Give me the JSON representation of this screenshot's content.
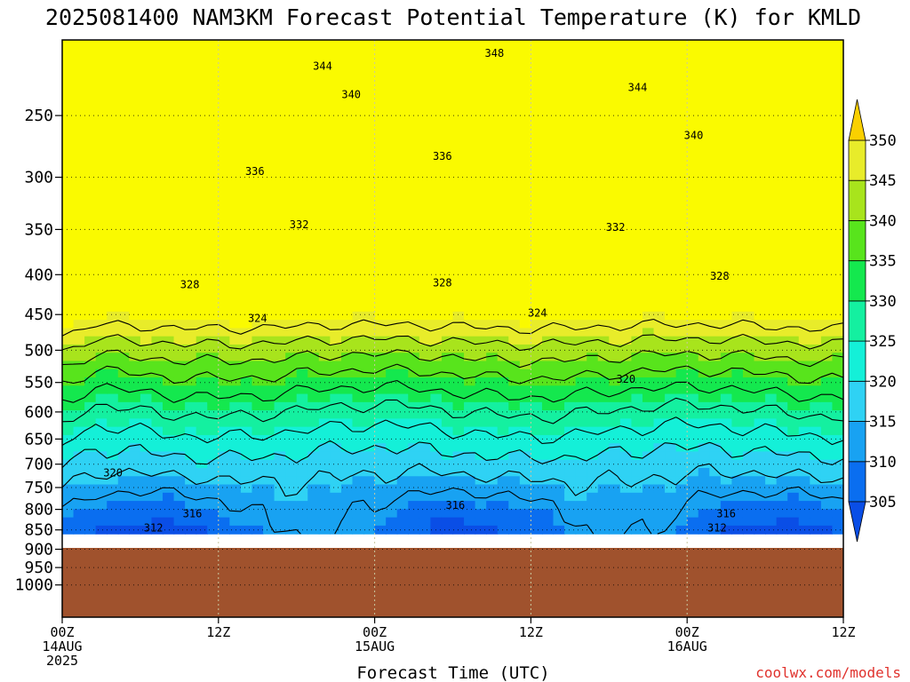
{
  "chart_data": {
    "type": "heatmap",
    "title": "2025081400 NAM3KM Forecast Potential Temperature (K) for KMLD",
    "xlabel": "Forecast Time (UTC)",
    "ylabel": "",
    "credit": "coolwx.com/models",
    "x_ticks": [
      {
        "hour": 0,
        "lines": [
          "00Z",
          "14AUG",
          "2025"
        ]
      },
      {
        "hour": 12,
        "lines": [
          "12Z"
        ]
      },
      {
        "hour": 24,
        "lines": [
          "00Z",
          "15AUG"
        ]
      },
      {
        "hour": 36,
        "lines": [
          "12Z"
        ]
      },
      {
        "hour": 48,
        "lines": [
          "00Z",
          "16AUG"
        ]
      },
      {
        "hour": 60,
        "lines": [
          "12Z"
        ]
      }
    ],
    "xlim": [
      0,
      60
    ],
    "y_scale": "log-pressure",
    "ylim_hpa": [
      1100,
      200
    ],
    "y_ticks": [
      250,
      300,
      350,
      400,
      450,
      500,
      550,
      600,
      650,
      700,
      750,
      800,
      850,
      900,
      950,
      1000
    ],
    "surface_pressure_hpa": 860,
    "colorbar": {
      "ticks": [
        305,
        310,
        315,
        320,
        325,
        330,
        335,
        340,
        345,
        350
      ],
      "colors": [
        {
          "min": 300,
          "max": 305,
          "color": "#0a4ee6"
        },
        {
          "min": 305,
          "max": 310,
          "color": "#0a6ef0"
        },
        {
          "min": 310,
          "max": 315,
          "color": "#18a2f2"
        },
        {
          "min": 315,
          "max": 320,
          "color": "#2fd2f4"
        },
        {
          "min": 320,
          "max": 325,
          "color": "#14f0d8"
        },
        {
          "min": 325,
          "max": 330,
          "color": "#14f0a0"
        },
        {
          "min": 330,
          "max": 335,
          "color": "#14e84e"
        },
        {
          "min": 335,
          "max": 340,
          "color": "#58e41c"
        },
        {
          "min": 340,
          "max": 345,
          "color": "#a8e41c"
        },
        {
          "min": 345,
          "max": 350,
          "color": "#e8ec2a"
        },
        {
          "min": 350,
          "max": 355,
          "color": "#fafa00"
        }
      ],
      "extend_low_color": "#0a4ee6",
      "extend_high_color": "#fad000"
    },
    "contour_levels": [
      312,
      316,
      320,
      324,
      328,
      332,
      336,
      340,
      344,
      348
    ],
    "contour_labels": [
      {
        "text": "348",
        "hour": 33.2,
        "hpa": 208
      },
      {
        "text": "344",
        "hour": 20.0,
        "hpa": 216
      },
      {
        "text": "344",
        "hour": 44.2,
        "hpa": 230
      },
      {
        "text": "340",
        "hour": 22.2,
        "hpa": 235
      },
      {
        "text": "340",
        "hour": 48.5,
        "hpa": 265
      },
      {
        "text": "336",
        "hour": 29.2,
        "hpa": 282
      },
      {
        "text": "336",
        "hour": 14.8,
        "hpa": 295
      },
      {
        "text": "332",
        "hour": 18.2,
        "hpa": 345
      },
      {
        "text": "332",
        "hour": 42.5,
        "hpa": 348
      },
      {
        "text": "328",
        "hour": 9.8,
        "hpa": 412
      },
      {
        "text": "328",
        "hour": 29.2,
        "hpa": 410
      },
      {
        "text": "328",
        "hour": 50.5,
        "hpa": 402
      },
      {
        "text": "324",
        "hour": 15.0,
        "hpa": 455
      },
      {
        "text": "324",
        "hour": 36.5,
        "hpa": 448
      },
      {
        "text": "320",
        "hour": 43.3,
        "hpa": 545
      },
      {
        "text": "320",
        "hour": 3.9,
        "hpa": 718
      },
      {
        "text": "316",
        "hour": 10.0,
        "hpa": 810
      },
      {
        "text": "316",
        "hour": 30.2,
        "hpa": 790
      },
      {
        "text": "316",
        "hour": 51.0,
        "hpa": 810
      },
      {
        "text": "312",
        "hour": 7.0,
        "hpa": 845
      },
      {
        "text": "312",
        "hour": 50.3,
        "hpa": 845
      }
    ]
  }
}
